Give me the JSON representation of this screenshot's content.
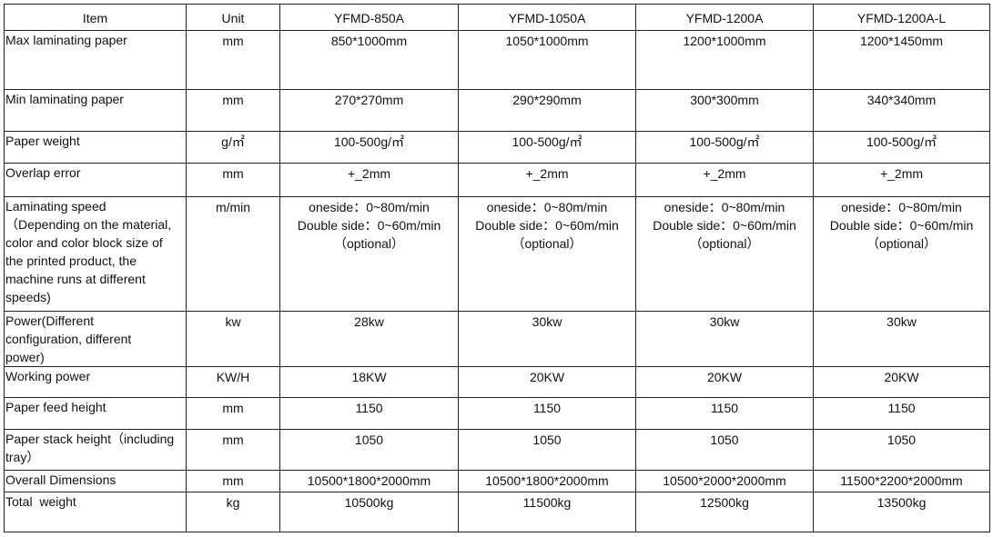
{
  "table": {
    "headers": [
      "Item",
      "Unit",
      "YFMD-850A",
      "YFMD-1050A",
      "YFMD-1200A",
      "YFMD-1200A-L"
    ],
    "rows": [
      [
        "Max laminating paper",
        "mm",
        "850*1000mm",
        "1050*1000mm",
        "1200*1000mm",
        "1200*1450mm"
      ],
      [
        "Min laminating paper",
        "mm",
        "270*270mm",
        "290*290mm",
        "300*300mm",
        "340*340mm"
      ],
      [
        "Paper weight",
        "g/㎡",
        "100-500g/㎡",
        "100-500g/㎡",
        "100-500g/㎡",
        "100-500g/㎡"
      ],
      [
        "Overlap error",
        "mm",
        "+_2mm",
        "+_2mm",
        "+_2mm",
        "+_2mm"
      ],
      [
        "Laminating speed\n（Depending on the material,\ncolor and color block size of\nthe printed product, the\nmachine runs at different\nspeeds)",
        "m/min",
        "oneside：0~80m/min\nDouble side：0~60m/min\n（optional）",
        "oneside：0~80m/min\nDouble side：0~60m/min\n（optional）",
        "oneside：0~80m/min\nDouble side：0~60m/min\n（optional）",
        "oneside：0~80m/min\nDouble side：0~60m/min\n（optional）"
      ],
      [
        "Power(Different\nconfiguration, different\npower)",
        "kw",
        "28kw",
        "30kw",
        "30kw",
        "30kw"
      ],
      [
        "Working power",
        "KW/H",
        "18KW",
        "20KW",
        "20KW",
        "20KW"
      ],
      [
        "Paper feed height",
        "mm",
        "1150",
        "1150",
        "1150",
        "1150"
      ],
      [
        "Paper stack height（including\ntray）",
        "mm",
        "1050",
        "1050",
        "1050",
        "1050"
      ],
      [
        "Overall Dimensions",
        "mm",
        "10500*1800*2000mm",
        "10500*1800*2000mm",
        "10500*2000*2000mm",
        "11500*2200*2000mm"
      ],
      [
        "Total  weight",
        "kg",
        "10500kg",
        "11500kg",
        "12500kg",
        "13500kg"
      ]
    ]
  }
}
